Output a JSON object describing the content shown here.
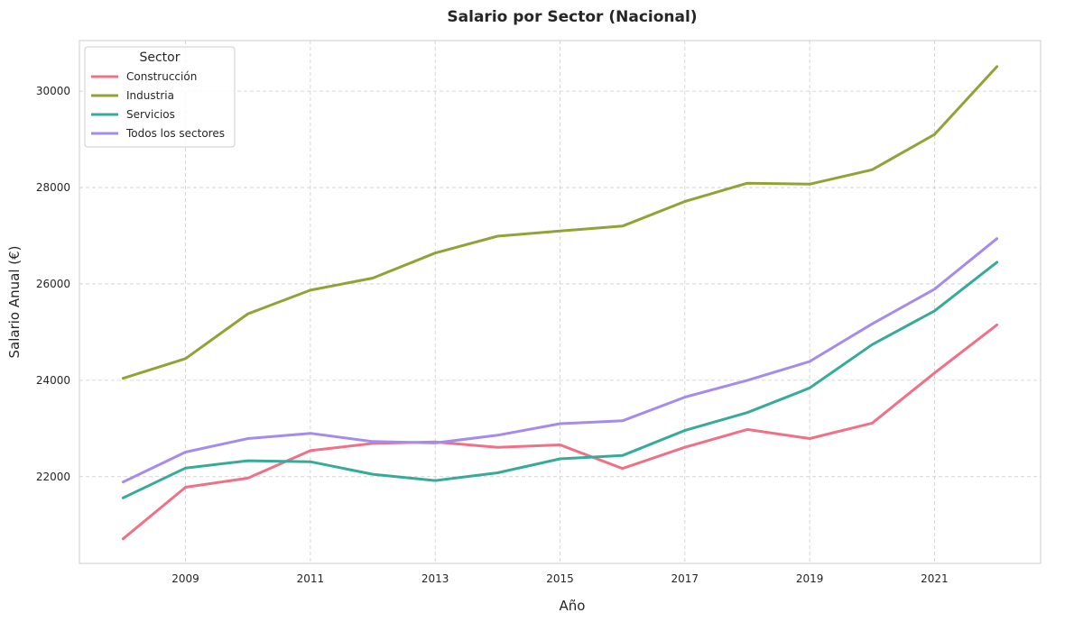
{
  "chart_data": {
    "type": "line",
    "title": "Salario por Sector (Nacional)",
    "xlabel": "Año",
    "ylabel": "Salario Anual (€)",
    "x": [
      2008,
      2009,
      2010,
      2011,
      2012,
      2013,
      2014,
      2015,
      2016,
      2017,
      2018,
      2019,
      2020,
      2021,
      2022
    ],
    "xticks": [
      2009,
      2011,
      2013,
      2015,
      2017,
      2019,
      2021
    ],
    "yticks": [
      22000,
      24000,
      26000,
      28000,
      30000
    ],
    "xlim": [
      2007.3,
      2022.7
    ],
    "ylim": [
      20200,
      31050
    ],
    "grid": true,
    "legend": {
      "title": "Sector",
      "position": "top-left"
    },
    "series": [
      {
        "name": "Construcción",
        "color": "#f07088",
        "values": [
          20710,
          21780,
          21970,
          22540,
          22690,
          22720,
          22610,
          22660,
          22170,
          22610,
          22980,
          22790,
          23110,
          24150,
          25150
        ]
      },
      {
        "name": "Industria",
        "color": "#93a236",
        "values": [
          24040,
          24450,
          25380,
          25870,
          26120,
          26640,
          26990,
          27100,
          27200,
          27710,
          28090,
          28070,
          28370,
          29100,
          30510
        ]
      },
      {
        "name": "Servicios",
        "color": "#37ab9a",
        "values": [
          21560,
          22180,
          22330,
          22310,
          22050,
          21920,
          22080,
          22370,
          22440,
          22960,
          23330,
          23840,
          24740,
          25440,
          26450
        ]
      },
      {
        "name": "Todos los sectores",
        "color": "#a58beb",
        "values": [
          21890,
          22510,
          22790,
          22900,
          22730,
          22700,
          22860,
          23100,
          23160,
          23650,
          24000,
          24390,
          25170,
          25890,
          26940
        ]
      }
    ]
  }
}
